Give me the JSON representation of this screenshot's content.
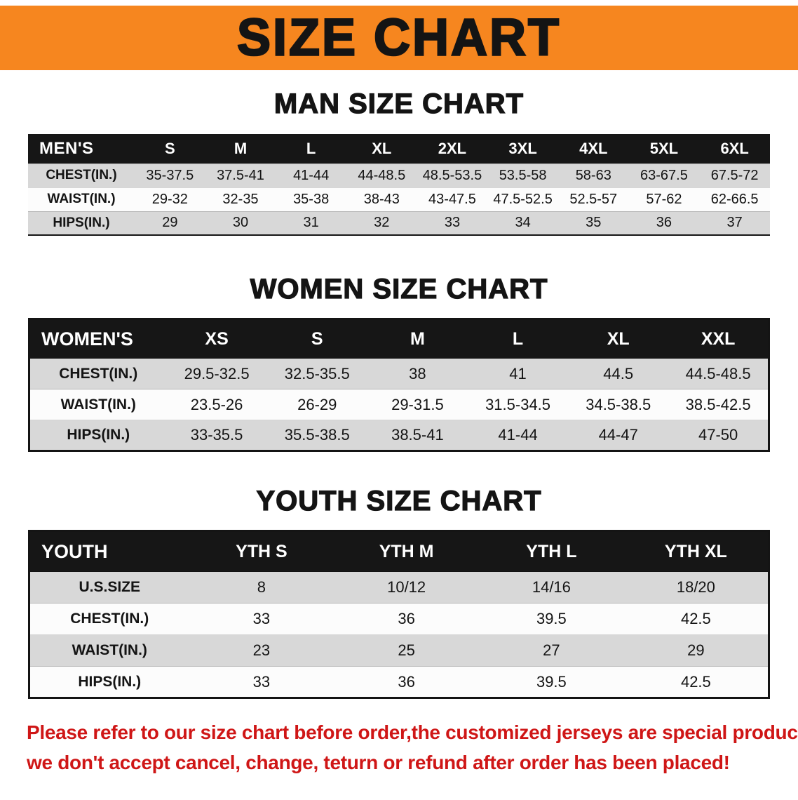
{
  "banner": {
    "title": "SIZE CHART"
  },
  "colors": {
    "banner_orange": "#f6861f",
    "header_black": "#161616",
    "row_gray": "#d8d8d8",
    "note_red": "#cf1616"
  },
  "chart_data": [
    {
      "type": "table",
      "title": "MAN SIZE CHART",
      "columns": [
        "MEN'S",
        "S",
        "M",
        "L",
        "XL",
        "2XL",
        "3XL",
        "4XL",
        "5XL",
        "6XL"
      ],
      "rows": [
        [
          "CHEST(IN.)",
          "35-37.5",
          "37.5-41",
          "41-44",
          "44-48.5",
          "48.5-53.5",
          "53.5-58",
          "58-63",
          "63-67.5",
          "67.5-72"
        ],
        [
          "WAIST(IN.)",
          "29-32",
          "32-35",
          "35-38",
          "38-43",
          "43-47.5",
          "47.5-52.5",
          "52.5-57",
          "57-62",
          "62-66.5"
        ],
        [
          "HIPS(IN.)",
          "29",
          "30",
          "31",
          "32",
          "33",
          "34",
          "35",
          "36",
          "37"
        ]
      ]
    },
    {
      "type": "table",
      "title": "WOMEN SIZE CHART",
      "columns": [
        "WOMEN'S",
        "XS",
        "S",
        "M",
        "L",
        "XL",
        "XXL"
      ],
      "rows": [
        [
          "CHEST(IN.)",
          "29.5-32.5",
          "32.5-35.5",
          "38",
          "41",
          "44.5",
          "44.5-48.5"
        ],
        [
          "WAIST(IN.)",
          "23.5-26",
          "26-29",
          "29-31.5",
          "31.5-34.5",
          "34.5-38.5",
          "38.5-42.5"
        ],
        [
          "HIPS(IN.)",
          "33-35.5",
          "35.5-38.5",
          "38.5-41",
          "41-44",
          "44-47",
          "47-50"
        ]
      ]
    },
    {
      "type": "table",
      "title": "YOUTH SIZE CHART",
      "columns": [
        "YOUTH",
        "YTH S",
        "YTH M",
        "YTH L",
        "YTH XL"
      ],
      "rows": [
        [
          "U.S.SIZE",
          "8",
          "10/12",
          "14/16",
          "18/20"
        ],
        [
          "CHEST(IN.)",
          "33",
          "36",
          "39.5",
          "42.5"
        ],
        [
          "WAIST(IN.)",
          "23",
          "25",
          "27",
          "29"
        ],
        [
          "HIPS(IN.)",
          "33",
          "36",
          "39.5",
          "42.5"
        ]
      ]
    }
  ],
  "footer": {
    "line1": "Please refer to our size chart before order,the customized jerseys are special products,",
    "line2": "we don't accept cancel, change, teturn or refund after order has been placed!"
  }
}
